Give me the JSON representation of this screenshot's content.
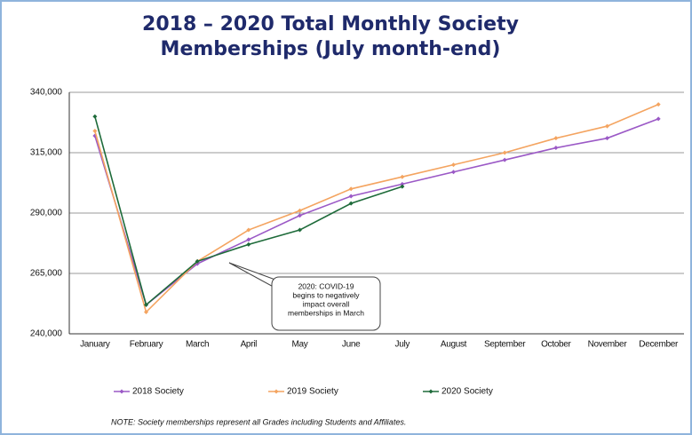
{
  "chart_data": {
    "type": "line",
    "title": [
      "2018 – 2020 Total Monthly Society",
      "Memberships (July month-end)"
    ],
    "categories": [
      "January",
      "February",
      "March",
      "April",
      "May",
      "June",
      "July",
      "August",
      "September",
      "October",
      "November",
      "December"
    ],
    "series": [
      {
        "name": "2018 Society",
        "color": "#9b59c6",
        "values": [
          322000,
          252000,
          269000,
          279000,
          289000,
          297000,
          302000,
          307000,
          312000,
          317000,
          321000,
          329000
        ]
      },
      {
        "name": "2019 Society",
        "color": "#f4a460",
        "values": [
          324000,
          249000,
          270000,
          283000,
          291000,
          300000,
          305000,
          310000,
          315000,
          321000,
          326000,
          335000
        ]
      },
      {
        "name": "2020 Society",
        "color": "#1e6b3a",
        "values": [
          330000,
          252000,
          270000,
          277000,
          283000,
          294000,
          301000,
          null,
          null,
          null,
          null,
          null
        ]
      }
    ],
    "ylim": [
      240000,
      340000
    ],
    "yticks": [
      {
        "value": 240000,
        "label": "240,000"
      },
      {
        "value": 265000,
        "label": "265,000"
      },
      {
        "value": 290000,
        "label": "290,000"
      },
      {
        "value": 315000,
        "label": "315,000"
      },
      {
        "value": 340000,
        "label": "340,000"
      }
    ],
    "grid": true,
    "annotation": [
      "2020: COVID-19",
      "begins to negatively",
      "impact overall",
      "memberships in March"
    ],
    "note": "NOTE:  Society memberships represent all Grades including Students and Affiliates."
  }
}
